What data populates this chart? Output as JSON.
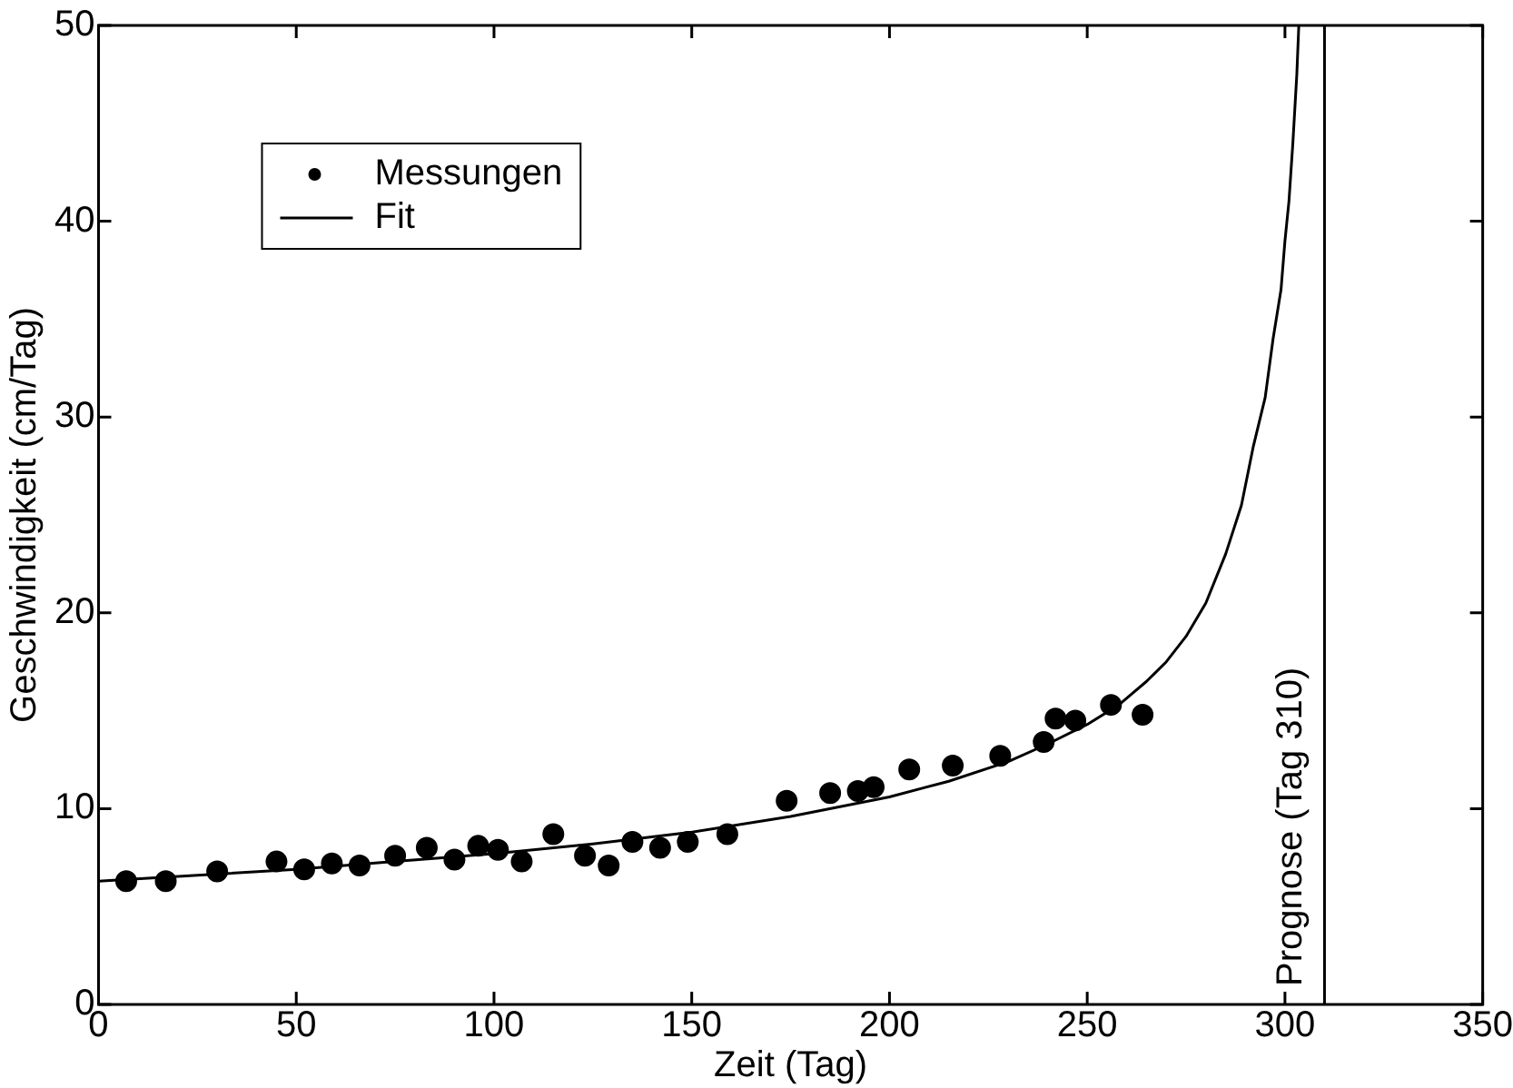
{
  "chart_data": {
    "type": "scatter",
    "xlabel": "Zeit (Tag)",
    "ylabel": "Geschwindigkeit (cm/Tag)",
    "xlim": [
      0,
      350
    ],
    "xticks": [
      0,
      50,
      100,
      150,
      200,
      250,
      300,
      350
    ],
    "ylim": [
      0,
      50
    ],
    "yticks": [
      0,
      10,
      20,
      30,
      40,
      50
    ],
    "grid": false,
    "legend": "top left",
    "series": [
      {
        "name": "Messungen",
        "marker": "circle",
        "color": "#000000",
        "x": [
          7,
          17,
          30,
          45,
          52,
          59,
          66,
          75,
          83,
          90,
          96,
          101,
          107,
          115,
          123,
          129,
          135,
          142,
          149,
          159,
          174,
          185,
          192,
          196,
          205,
          216,
          228,
          239,
          242,
          247,
          256,
          264
        ],
        "values": [
          6.3,
          6.3,
          6.8,
          7.3,
          6.9,
          7.2,
          7.1,
          7.6,
          8.0,
          7.4,
          8.1,
          7.9,
          7.3,
          8.7,
          7.6,
          7.1,
          8.3,
          8.0,
          8.3,
          8.7,
          10.4,
          10.8,
          10.9,
          11.1,
          12.0,
          12.2,
          12.7,
          13.4,
          14.6,
          14.5,
          15.3,
          14.8
        ]
      },
      {
        "name": "Fit",
        "type": "line",
        "marker": "none",
        "color": "#000000",
        "x": [
          0,
          25,
          50,
          75,
          100,
          125,
          150,
          175,
          200,
          215,
          230,
          240,
          250,
          258,
          265,
          270,
          275,
          280,
          285,
          289,
          292,
          295,
          297,
          299,
          300,
          301,
          302,
          303,
          303.5
        ],
        "values": [
          6.3,
          6.6,
          6.9,
          7.3,
          7.7,
          8.2,
          8.8,
          9.6,
          10.6,
          11.4,
          12.4,
          13.3,
          14.3,
          15.3,
          16.5,
          17.5,
          18.8,
          20.5,
          23,
          25.5,
          28.5,
          31,
          34,
          36.5,
          39,
          41,
          44,
          47.5,
          50
        ]
      }
    ],
    "ref_lines": [
      {
        "axis": "x",
        "value": 310,
        "label": "Prognose (Tag 310)",
        "color": "#000000"
      }
    ]
  }
}
